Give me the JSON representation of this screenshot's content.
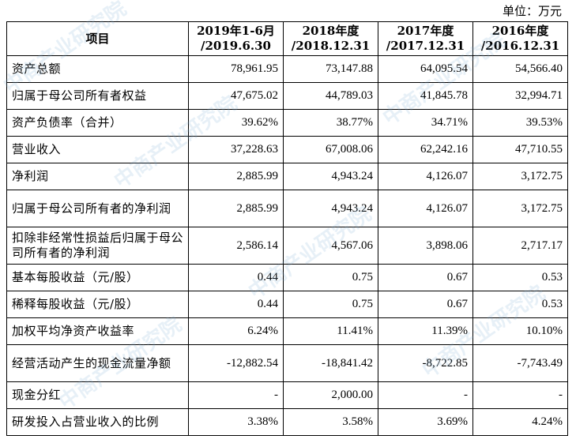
{
  "unit_label": "单位：万元",
  "headers": {
    "item": "项目",
    "p1_line1": "2019年1-6月",
    "p1_line2": "/2019.6.30",
    "p2_line1": "2018年度",
    "p2_line2": "/2018.12.31",
    "p3_line1": "2017年度",
    "p3_line2": "/2017.12.31",
    "p4_line1": "2016年度",
    "p4_line2": "/2016.12.31"
  },
  "rows": [
    {
      "label": "资产总额",
      "v1": "78,961.95",
      "v2": "73,147.88",
      "v3": "64,095.54",
      "v4": "54,566.40"
    },
    {
      "label": "归属于母公司所有者权益",
      "v1": "47,675.02",
      "v2": "44,789.03",
      "v3": "41,845.78",
      "v4": "32,994.71"
    },
    {
      "label": "资产负债率（合并）",
      "v1": "39.62%",
      "v2": "38.77%",
      "v3": "34.71%",
      "v4": "39.53%"
    },
    {
      "label": "营业收入",
      "v1": "37,228.63",
      "v2": "67,008.06",
      "v3": "62,242.16",
      "v4": "47,710.55"
    },
    {
      "label": "净利润",
      "v1": "2,885.99",
      "v2": "4,943.24",
      "v3": "4,126.07",
      "v4": "3,172.75"
    },
    {
      "label": "归属于母公司所有者的净利润",
      "v1": "2,885.99",
      "v2": "4,943.24",
      "v3": "4,126.07",
      "v4": "3,172.75"
    },
    {
      "label": "扣除非经常性损益后归属于母公司所有者的净利润",
      "v1": "2,586.14",
      "v2": "4,567.06",
      "v3": "3,898.06",
      "v4": "2,717.17"
    },
    {
      "label": "基本每股收益（元/股）",
      "v1": "0.44",
      "v2": "0.75",
      "v3": "0.67",
      "v4": "0.53"
    },
    {
      "label": "稀释每股收益（元/股）",
      "v1": "0.44",
      "v2": "0.75",
      "v3": "0.67",
      "v4": "0.53"
    },
    {
      "label": "加权平均净资产收益率",
      "v1": "6.24%",
      "v2": "11.41%",
      "v3": "11.39%",
      "v4": "10.10%"
    },
    {
      "label": "经营活动产生的现金流量净额",
      "v1": "-12,882.54",
      "v2": "-18,841.42",
      "v3": "-8,722.85",
      "v4": "-7,743.49"
    },
    {
      "label": "现金分红",
      "v1": "-",
      "v2": "2,000.00",
      "v3": "-",
      "v4": "-"
    },
    {
      "label": "研发投入占营业收入的比例",
      "v1": "3.38%",
      "v2": "3.58%",
      "v3": "3.69%",
      "v4": "4.24%"
    }
  ],
  "watermark_text": "中商产业研究院"
}
